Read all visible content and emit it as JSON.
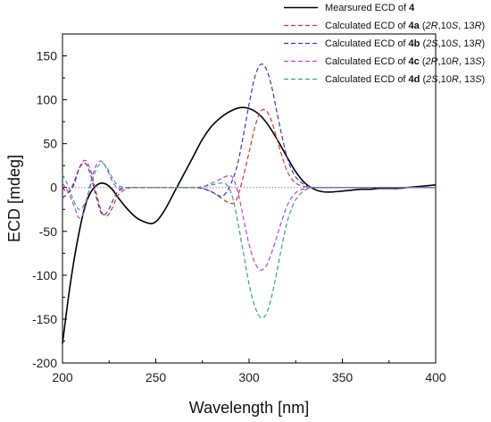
{
  "chart_data": {
    "type": "line",
    "xlabel": "Wavelength [nm]",
    "ylabel": "ECD [mdeg]",
    "xlim": [
      200,
      400
    ],
    "ylim": [
      -200,
      175
    ],
    "xticks": [
      200,
      250,
      300,
      350,
      400
    ],
    "yticks": [
      -200,
      -150,
      -100,
      -50,
      0,
      50,
      100,
      150
    ],
    "xtick_labels": [
      "200",
      "250",
      "300",
      "350",
      "400"
    ],
    "ytick_labels": [
      "-200",
      "-150",
      "-100",
      "-50",
      "0",
      "50",
      "100",
      "150"
    ],
    "zero_line": true,
    "grid": false,
    "legend": {
      "position": "top-right",
      "entries": [
        {
          "parts": [
            {
              "t": "Mearsured ECD of ",
              "s": "n"
            },
            {
              "t": "4",
              "s": "b"
            }
          ]
        },
        {
          "parts": [
            {
              "t": "Calculated ECD of ",
              "s": "n"
            },
            {
              "t": "4a",
              "s": "b"
            },
            {
              "t": " (",
              "s": "n"
            },
            {
              "t": "2R",
              "s": "i"
            },
            {
              "t": ",10",
              "s": "n"
            },
            {
              "t": "S",
              "s": "i"
            },
            {
              "t": ", 13",
              "s": "n"
            },
            {
              "t": "R",
              "s": "i"
            },
            {
              "t": ")",
              "s": "n"
            }
          ]
        },
        {
          "parts": [
            {
              "t": "Calculated ECD of ",
              "s": "n"
            },
            {
              "t": "4b",
              "s": "b"
            },
            {
              "t": " (",
              "s": "n"
            },
            {
              "t": "2S",
              "s": "i"
            },
            {
              "t": ",10",
              "s": "n"
            },
            {
              "t": "S",
              "s": "i"
            },
            {
              "t": ", 13",
              "s": "n"
            },
            {
              "t": "R",
              "s": "i"
            },
            {
              "t": ")",
              "s": "n"
            }
          ]
        },
        {
          "parts": [
            {
              "t": "Calculated ECD of ",
              "s": "n"
            },
            {
              "t": "4c",
              "s": "b"
            },
            {
              "t": " (",
              "s": "n"
            },
            {
              "t": "2R",
              "s": "i"
            },
            {
              "t": ",10",
              "s": "n"
            },
            {
              "t": "R",
              "s": "i"
            },
            {
              "t": ", 13",
              "s": "n"
            },
            {
              "t": "S",
              "s": "i"
            },
            {
              "t": ")",
              "s": "n"
            }
          ]
        },
        {
          "parts": [
            {
              "t": "Calculated ECD of ",
              "s": "n"
            },
            {
              "t": "4d",
              "s": "b"
            },
            {
              "t": " (",
              "s": "n"
            },
            {
              "t": "2S",
              "s": "i"
            },
            {
              "t": ",10",
              "s": "n"
            },
            {
              "t": "R",
              "s": "i"
            },
            {
              "t": ", 13",
              "s": "n"
            },
            {
              "t": "S",
              "s": "i"
            },
            {
              "t": ")",
              "s": "n"
            }
          ]
        }
      ]
    },
    "series": [
      {
        "color": "#000000",
        "dash": "solid",
        "x": [
          200,
          203,
          206,
          209,
          212,
          215,
          218,
          221,
          224,
          227,
          230,
          235,
          240,
          245,
          248,
          251,
          255,
          260,
          265,
          270,
          275,
          280,
          285,
          290,
          295,
          300,
          305,
          310,
          315,
          320,
          325,
          330,
          335,
          340,
          345,
          350,
          355,
          360,
          365,
          370,
          375,
          380,
          385,
          390,
          395,
          400
        ],
        "y": [
          -178,
          -128,
          -85,
          -50,
          -22,
          -6,
          2,
          5,
          3,
          -3,
          -12,
          -25,
          -35,
          -40,
          -41,
          -37,
          -25,
          -5,
          15,
          35,
          55,
          70,
          80,
          87,
          91,
          90,
          84,
          72,
          55,
          36,
          18,
          5,
          -2,
          -5,
          -5,
          -4,
          -3,
          -2,
          -2,
          -1,
          -1,
          -1,
          0,
          1,
          2,
          3
        ]
      },
      {
        "color": "#e8302a",
        "dash": "dashed",
        "x": [
          200,
          203,
          206,
          209,
          212,
          215,
          218,
          221,
          224,
          227,
          230,
          235,
          240,
          250,
          260,
          270,
          275,
          280,
          285,
          290,
          293,
          296,
          300,
          303,
          306,
          309,
          312,
          315,
          318,
          321,
          325,
          330,
          335,
          340,
          350,
          360,
          370,
          380,
          390,
          400
        ],
        "y": [
          0,
          -6,
          2,
          22,
          31,
          20,
          -5,
          -28,
          -32,
          -22,
          -8,
          -1,
          0,
          0,
          0,
          0,
          -1,
          -5,
          -12,
          -18,
          -15,
          5,
          40,
          68,
          86,
          88,
          76,
          55,
          33,
          16,
          5,
          1,
          0,
          0,
          0,
          0,
          0,
          0,
          0,
          0
        ]
      },
      {
        "color": "#3535d6",
        "dash": "dashed",
        "x": [
          200,
          203,
          206,
          209,
          212,
          215,
          218,
          221,
          224,
          227,
          230,
          235,
          240,
          250,
          260,
          270,
          275,
          280,
          285,
          288,
          291,
          294,
          297,
          300,
          303,
          306,
          309,
          312,
          315,
          318,
          321,
          325,
          330,
          335,
          340,
          350,
          360,
          370,
          380,
          390,
          400
        ],
        "y": [
          -12,
          -6,
          5,
          22,
          28,
          15,
          -10,
          -30,
          -28,
          -15,
          -4,
          0,
          0,
          0,
          0,
          0,
          -1,
          -5,
          -10,
          -5,
          8,
          28,
          60,
          95,
          125,
          140,
          136,
          116,
          85,
          55,
          30,
          12,
          3,
          0,
          0,
          0,
          0,
          0,
          0,
          0,
          0
        ]
      },
      {
        "color": "#b045e8",
        "dash": "dashed",
        "x": [
          200,
          203,
          206,
          209,
          212,
          215,
          218,
          221,
          224,
          227,
          230,
          235,
          240,
          250,
          260,
          270,
          275,
          280,
          285,
          288,
          291,
          294,
          297,
          300,
          303,
          306,
          309,
          312,
          315,
          318,
          321,
          325,
          330,
          335,
          340,
          350,
          360,
          370,
          380,
          390,
          400
        ],
        "y": [
          5,
          -5,
          -20,
          -35,
          -25,
          5,
          25,
          30,
          20,
          6,
          -1,
          0,
          0,
          0,
          0,
          0,
          1,
          5,
          10,
          13,
          12,
          -5,
          -35,
          -65,
          -85,
          -94,
          -90,
          -75,
          -55,
          -35,
          -18,
          -6,
          -1,
          0,
          0,
          0,
          0,
          0,
          0,
          0,
          0
        ]
      },
      {
        "color": "#2ea886",
        "dash": "dashed",
        "x": [
          200,
          203,
          206,
          209,
          212,
          215,
          218,
          221,
          224,
          227,
          230,
          235,
          240,
          250,
          260,
          270,
          275,
          280,
          285,
          288,
          291,
          294,
          297,
          300,
          303,
          306,
          309,
          312,
          315,
          318,
          321,
          325,
          330,
          335,
          340,
          350,
          360,
          370,
          380,
          390,
          400
        ],
        "y": [
          15,
          2,
          -15,
          -25,
          -18,
          2,
          20,
          28,
          22,
          10,
          2,
          0,
          0,
          0,
          0,
          0,
          1,
          3,
          5,
          3,
          -10,
          -40,
          -75,
          -110,
          -135,
          -148,
          -145,
          -125,
          -95,
          -62,
          -35,
          -14,
          -3,
          0,
          0,
          0,
          0,
          0,
          0,
          0,
          0
        ]
      }
    ]
  }
}
